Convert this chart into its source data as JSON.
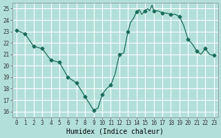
{
  "title": "",
  "xlabel": "Humidex (Indice chaleur)",
  "ylabel": "",
  "background_color": "#b2e0d8",
  "grid_color": "#ffffff",
  "line_color": "#1a6b5a",
  "marker_color": "#1a6b5a",
  "xlim": [
    -0.5,
    23.5
  ],
  "ylim": [
    15.5,
    25.5
  ],
  "yticks": [
    16,
    17,
    18,
    19,
    20,
    21,
    22,
    23,
    24,
    25
  ],
  "xticks": [
    0,
    1,
    2,
    3,
    4,
    5,
    6,
    7,
    8,
    9,
    10,
    11,
    12,
    13,
    14,
    15,
    16,
    17,
    18,
    19,
    20,
    21,
    22,
    23
  ],
  "x": [
    0,
    1,
    2,
    3,
    4,
    5,
    6,
    7,
    8,
    9,
    9.5,
    10,
    10.5,
    11,
    11.5,
    12,
    12.5,
    13,
    13.3,
    13.6,
    14,
    14.3,
    14.6,
    15,
    15.3,
    15.5,
    15.8,
    16,
    16.3,
    16.5,
    16.8,
    17,
    17.5,
    18,
    18.5,
    19,
    19.5,
    20,
    20.5,
    21,
    21.5,
    22,
    22.5,
    23
  ],
  "y": [
    23.1,
    22.8,
    21.7,
    21.5,
    20.5,
    20.3,
    19.0,
    18.5,
    17.3,
    16.1,
    16.3,
    17.5,
    18.0,
    18.3,
    19.3,
    21.0,
    21.1,
    23.0,
    23.8,
    24.1,
    24.7,
    24.9,
    24.5,
    24.8,
    25.0,
    24.8,
    25.3,
    24.8,
    24.8,
    24.8,
    24.7,
    24.6,
    24.6,
    24.5,
    24.5,
    24.3,
    23.5,
    22.3,
    21.9,
    21.3,
    21.0,
    21.5,
    21.0,
    20.9
  ],
  "marker_x": [
    0,
    1,
    2,
    3,
    4,
    5,
    6,
    7,
    8,
    9,
    10,
    11,
    12,
    13,
    14,
    15,
    16,
    17,
    18,
    19,
    20,
    21,
    22,
    23
  ],
  "marker_y": [
    23.1,
    22.8,
    21.7,
    21.5,
    20.5,
    20.3,
    19.0,
    18.5,
    17.3,
    16.1,
    17.5,
    18.3,
    21.0,
    23.0,
    24.7,
    24.8,
    24.8,
    24.6,
    24.5,
    24.3,
    22.3,
    21.3,
    21.5,
    20.9
  ]
}
